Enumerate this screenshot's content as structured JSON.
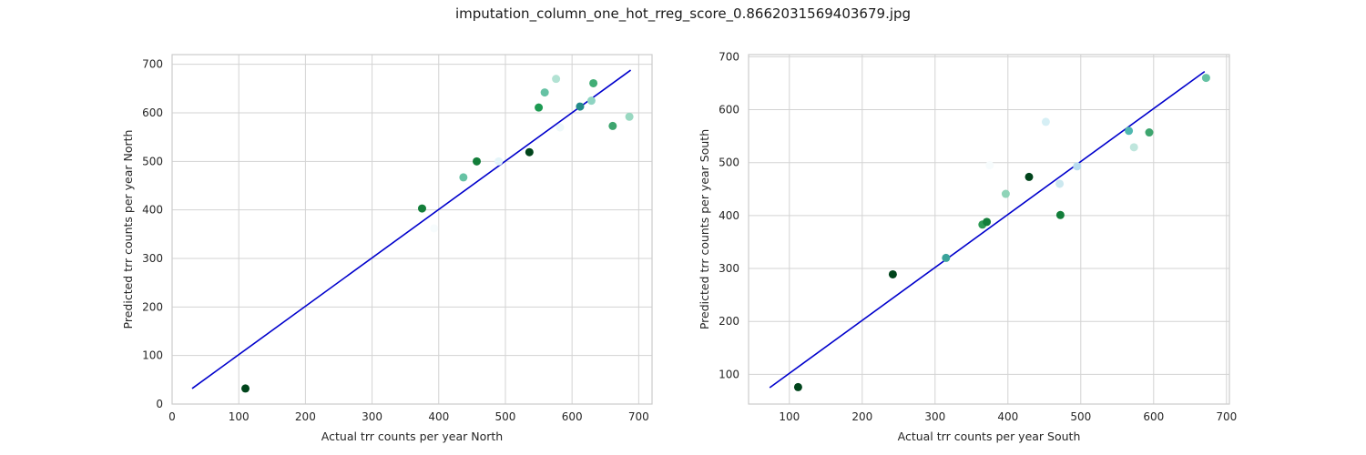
{
  "figure": {
    "title": "imputation_column_one_hot_rreg_score_0.8662031569403679.jpg"
  },
  "chart_data": [
    {
      "type": "scatter",
      "xlabel": "Actual trr counts per year North",
      "ylabel": "Predicted trr counts per year North",
      "xlim": [
        0,
        720
      ],
      "ylim": [
        0,
        720
      ],
      "xticks": [
        0,
        100,
        200,
        300,
        400,
        500,
        600,
        700
      ],
      "yticks": [
        0,
        100,
        200,
        300,
        400,
        500,
        600,
        700
      ],
      "grid": true,
      "points": [
        {
          "x": 110,
          "y": 32,
          "color": "#00441b"
        },
        {
          "x": 375,
          "y": 403,
          "color": "#137e3a"
        },
        {
          "x": 393,
          "y": 362,
          "color": "#f7fcfd"
        },
        {
          "x": 437,
          "y": 467,
          "color": "#66c2a4"
        },
        {
          "x": 457,
          "y": 500,
          "color": "#137e3a"
        },
        {
          "x": 490,
          "y": 500,
          "color": "#e5f5f9"
        },
        {
          "x": 536,
          "y": 519,
          "color": "#00441b"
        },
        {
          "x": 550,
          "y": 611,
          "color": "#1d9a52"
        },
        {
          "x": 559,
          "y": 642,
          "color": "#66c2a4"
        },
        {
          "x": 576,
          "y": 670,
          "color": "#b2e2d3"
        },
        {
          "x": 582,
          "y": 570,
          "color": "#eef8f9"
        },
        {
          "x": 612,
          "y": 613,
          "color": "#238b8a"
        },
        {
          "x": 629,
          "y": 625,
          "color": "#8fd4c2"
        },
        {
          "x": 632,
          "y": 661,
          "color": "#41ae76"
        },
        {
          "x": 661,
          "y": 573,
          "color": "#3da56e"
        },
        {
          "x": 686,
          "y": 592,
          "color": "#99d8c1"
        }
      ],
      "fit_line": {
        "x": [
          30,
          688
        ],
        "y": [
          32,
          688
        ],
        "color": "#0000cc"
      }
    },
    {
      "type": "scatter",
      "xlabel": "Actual trr counts per year South",
      "ylabel": "Predicted trr counts per year South",
      "xlim": [
        44,
        704
      ],
      "ylim": [
        44,
        704
      ],
      "xticks": [
        100,
        200,
        300,
        400,
        500,
        600,
        700
      ],
      "yticks": [
        100,
        200,
        300,
        400,
        500,
        600,
        700
      ],
      "grid": true,
      "points": [
        {
          "x": 112,
          "y": 76,
          "color": "#00441b"
        },
        {
          "x": 242,
          "y": 289,
          "color": "#00441b"
        },
        {
          "x": 315,
          "y": 320,
          "color": "#3aa39a"
        },
        {
          "x": 365,
          "y": 383,
          "color": "#2e9a55"
        },
        {
          "x": 371,
          "y": 388,
          "color": "#137e3a"
        },
        {
          "x": 375,
          "y": 495,
          "color": "#f7fcfd"
        },
        {
          "x": 397,
          "y": 441,
          "color": "#8fd4b8"
        },
        {
          "x": 429,
          "y": 473,
          "color": "#00441b"
        },
        {
          "x": 452,
          "y": 577,
          "color": "#d6eff5"
        },
        {
          "x": 471,
          "y": 460,
          "color": "#cce8ef"
        },
        {
          "x": 472,
          "y": 401,
          "color": "#137e3a"
        },
        {
          "x": 495,
          "y": 493,
          "color": "#b9ddef"
        },
        {
          "x": 566,
          "y": 560,
          "color": "#50b8b0"
        },
        {
          "x": 573,
          "y": 529,
          "color": "#bfe6dd"
        },
        {
          "x": 594,
          "y": 557,
          "color": "#3da56e"
        },
        {
          "x": 672,
          "y": 660,
          "color": "#66c2a4"
        }
      ],
      "fit_line": {
        "x": [
          73,
          670
        ],
        "y": [
          75,
          672
        ],
        "color": "#0000cc"
      }
    }
  ]
}
